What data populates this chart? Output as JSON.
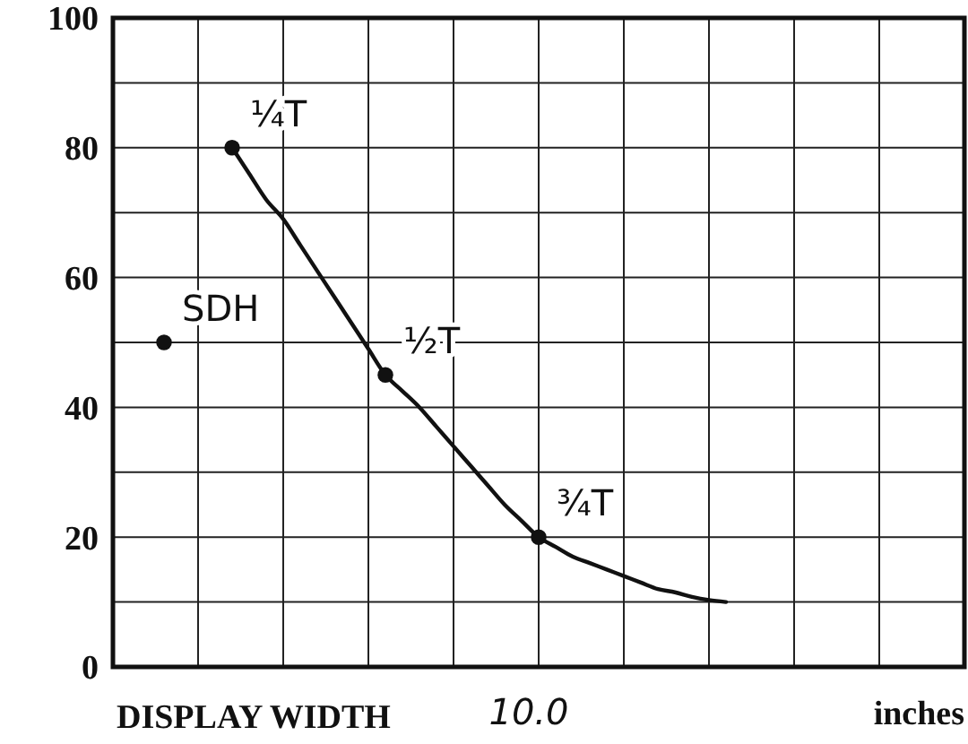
{
  "chart_data": {
    "type": "line",
    "xlabel": "DISPLAY WIDTH",
    "annotations": [
      "10.0",
      "inches"
    ],
    "categories": [
      null,
      null,
      null,
      null,
      null,
      null,
      null,
      null,
      null,
      null,
      null,
      null,
      null,
      null,
      null,
      null,
      null,
      null,
      null,
      null,
      null,
      null,
      null,
      null,
      null,
      null,
      null,
      null,
      null,
      null,
      null,
      null,
      null,
      null,
      null,
      null,
      null,
      null,
      null,
      null,
      null,
      null,
      null,
      null,
      null,
      null,
      null,
      null,
      null,
      null,
      null
    ],
    "ylim": [
      0,
      100
    ],
    "yticks": [
      0,
      {
        "value": 10,
        "label": null
      },
      20,
      {
        "value": 30,
        "label": null
      },
      40,
      {
        "value": 50,
        "label": null
      },
      60,
      {
        "value": 70,
        "label": null
      },
      80,
      {
        "value": 90,
        "label": null
      },
      100
    ],
    "grid": true,
    "legend": false,
    "line_style": "solid",
    "series": [
      {
        "color": "#111111",
        "marker": "none",
        "values": [
          null,
          null,
          null,
          null,
          null,
          null,
          null,
          80,
          76,
          72,
          69,
          65,
          61,
          57,
          53,
          49,
          45,
          42.5,
          40,
          37,
          34,
          31,
          28,
          25,
          22.5,
          20,
          18.5,
          17,
          16,
          15,
          14,
          13,
          12,
          11.5,
          10.8,
          10.3,
          10,
          null,
          null,
          null,
          null,
          null,
          null,
          null,
          null,
          null,
          null,
          null,
          null,
          null,
          null
        ]
      },
      {
        "type": "scatter",
        "name": "SDH",
        "color": "#111111",
        "marker": "circle",
        "values": [
          null,
          null,
          null,
          50,
          null,
          null,
          null,
          null,
          null,
          null,
          null,
          null,
          null,
          null,
          null,
          null,
          null,
          null,
          null,
          null,
          null,
          null,
          null,
          null,
          null,
          null,
          null,
          null,
          null,
          null,
          null,
          null,
          null,
          null,
          null,
          null,
          null,
          null,
          null,
          null,
          null,
          null,
          null,
          null,
          null,
          null,
          null,
          null,
          null,
          null,
          null
        ]
      },
      {
        "type": "scatter",
        "name": "¼T",
        "color": "#111111",
        "marker": "circle",
        "values": [
          null,
          null,
          null,
          null,
          null,
          null,
          null,
          80,
          null,
          null,
          null,
          null,
          null,
          null,
          null,
          null,
          null,
          null,
          null,
          null,
          null,
          null,
          null,
          null,
          null,
          null,
          null,
          null,
          null,
          null,
          null,
          null,
          null,
          null,
          null,
          null,
          null,
          null,
          null,
          null,
          null,
          null,
          null,
          null,
          null,
          null,
          null,
          null,
          null,
          null,
          null
        ]
      },
      {
        "type": "scatter",
        "name": "½T",
        "color": "#111111",
        "marker": "circle",
        "values": [
          null,
          null,
          null,
          null,
          null,
          null,
          null,
          null,
          null,
          null,
          null,
          null,
          null,
          null,
          null,
          null,
          45,
          null,
          null,
          null,
          null,
          null,
          null,
          null,
          null,
          null,
          null,
          null,
          null,
          null,
          null,
          null,
          null,
          null,
          null,
          null,
          null,
          null,
          null,
          null,
          null,
          null,
          null,
          null,
          null,
          null,
          null,
          null,
          null,
          null,
          null
        ]
      },
      {
        "type": "scatter",
        "name": "¾T",
        "color": "#111111",
        "marker": "circle",
        "values": [
          null,
          null,
          null,
          null,
          null,
          null,
          null,
          null,
          null,
          null,
          null,
          null,
          null,
          null,
          null,
          null,
          null,
          null,
          null,
          null,
          null,
          null,
          null,
          null,
          null,
          20,
          null,
          null,
          null,
          null,
          null,
          null,
          null,
          null,
          null,
          null,
          null,
          null,
          null,
          null,
          null,
          null,
          null,
          null,
          null,
          null,
          null,
          null,
          null,
          null,
          null
        ]
      }
    ]
  }
}
